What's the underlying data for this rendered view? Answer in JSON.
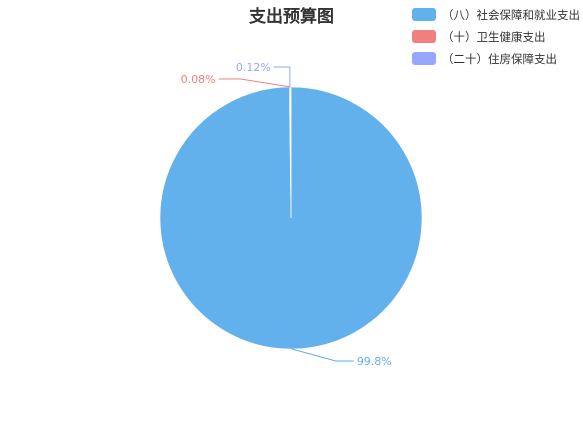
{
  "chart_data": {
    "type": "pie",
    "title": "支出预算图",
    "legend_position": "top-right",
    "slices": [
      {
        "name": "（八）社会保障和就业支出",
        "value": 99.8,
        "label": "99.8%",
        "color": "#62b0ec"
      },
      {
        "name": "（十）卫生健康支出",
        "value": 0.08,
        "label": "0.08%",
        "color": "#f08080"
      },
      {
        "name": "（二十）住房保障支出",
        "value": 0.12,
        "label": "0.12%",
        "color": "#97a6ff"
      }
    ]
  }
}
